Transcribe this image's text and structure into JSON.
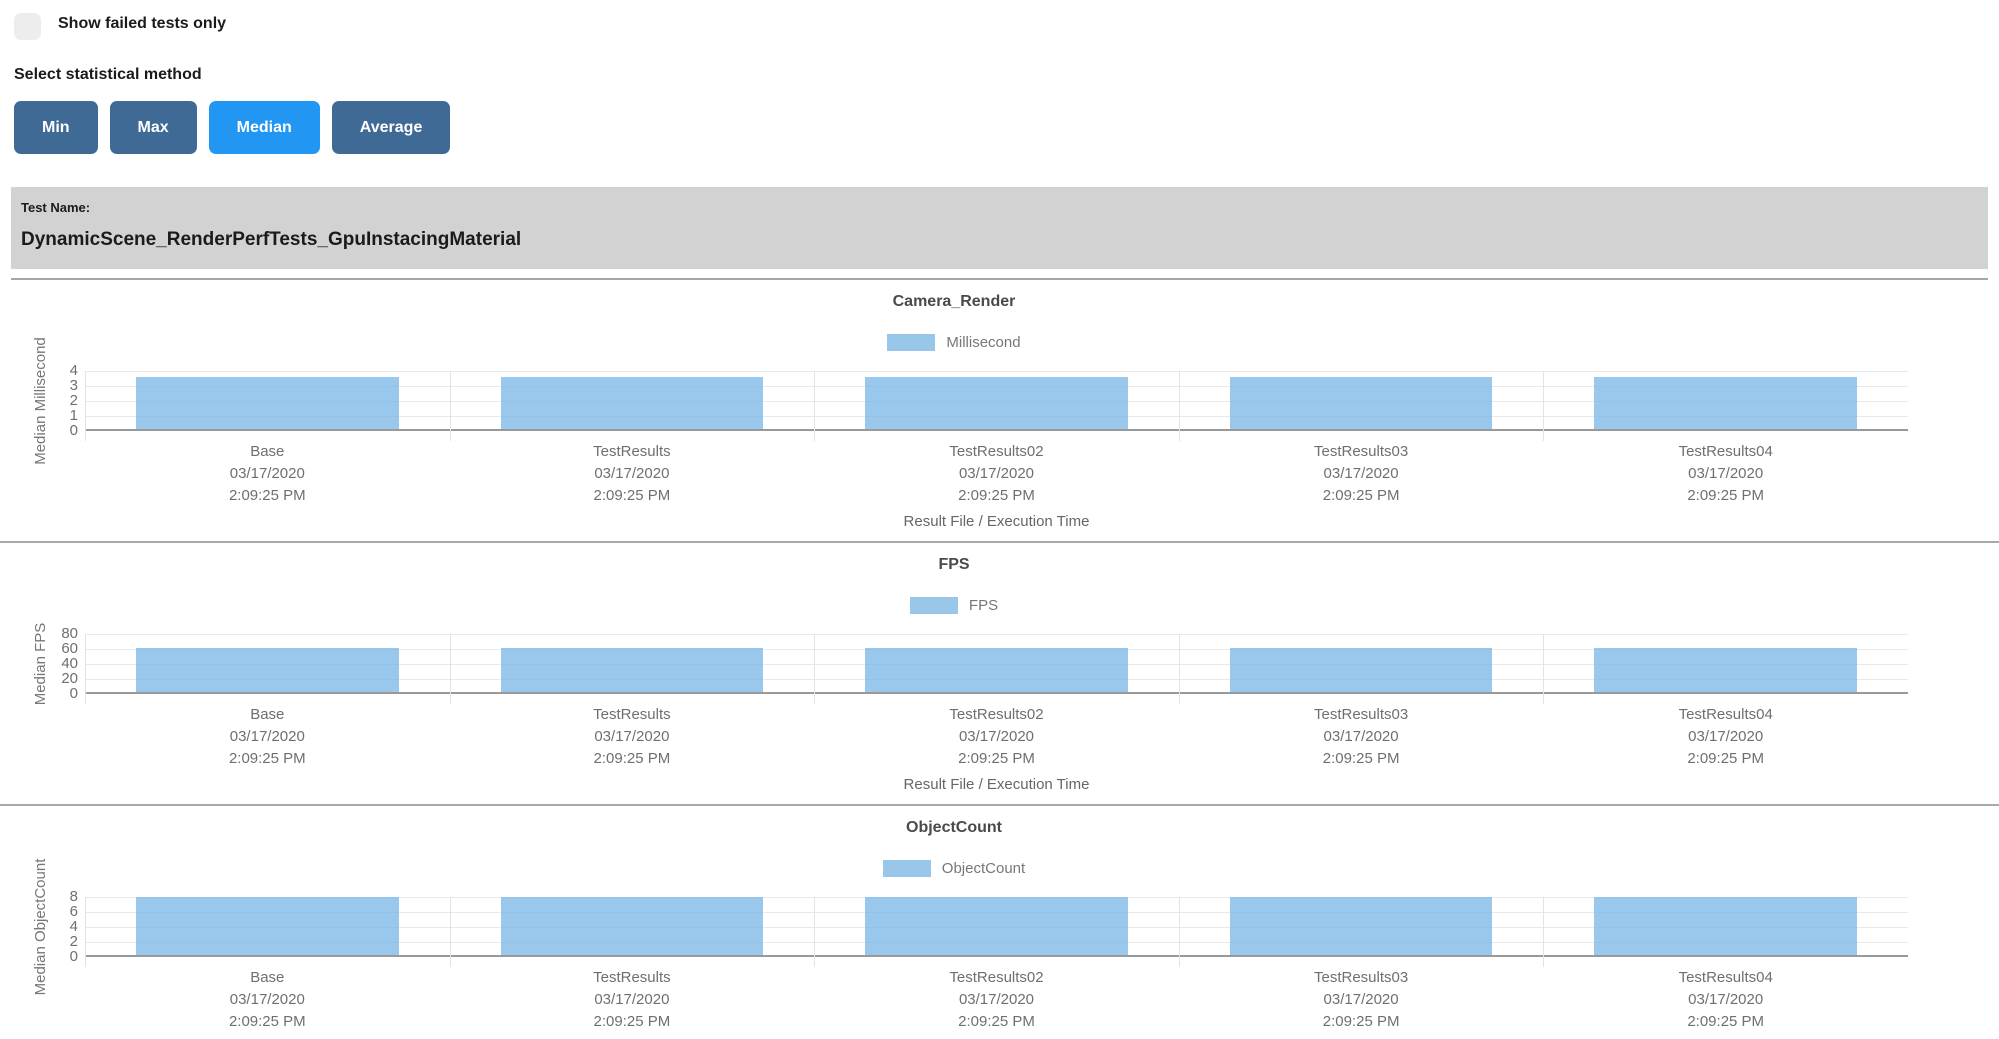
{
  "controls": {
    "show_failed_label": "Show failed tests only",
    "stat_method_label": "Select statistical method",
    "buttons": [
      {
        "label": "Min",
        "active": false
      },
      {
        "label": "Max",
        "active": false
      },
      {
        "label": "Median",
        "active": true
      },
      {
        "label": "Average",
        "active": false
      }
    ]
  },
  "test": {
    "header_label": "Test Name:",
    "name": "DynamicScene_RenderPerfTests_GpuInstacingMaterial"
  },
  "colors": {
    "bar_fill": "#99c7ea",
    "button_default": "#3f6a96",
    "button_active": "#2196f3",
    "header_bg": "#d2d2d2"
  },
  "chart_data": [
    {
      "type": "bar",
      "title": "Camera_Render",
      "legend": "Millisecond",
      "legend_position": "top",
      "ylabel": "Median Millisecond",
      "xlabel": "Result File / Execution Time",
      "ylim": [
        0,
        4
      ],
      "yticks": [
        0,
        1,
        2,
        3,
        4
      ],
      "grid": true,
      "categories": [
        [
          "Base",
          "03/17/2020",
          "2:09:25 PM"
        ],
        [
          "TestResults",
          "03/17/2020",
          "2:09:25 PM"
        ],
        [
          "TestResults02",
          "03/17/2020",
          "2:09:25 PM"
        ],
        [
          "TestResults03",
          "03/17/2020",
          "2:09:25 PM"
        ],
        [
          "TestResults04",
          "03/17/2020",
          "2:09:25 PM"
        ]
      ],
      "values": [
        3.5,
        3.5,
        3.5,
        3.5,
        3.5
      ]
    },
    {
      "type": "bar",
      "title": "FPS",
      "legend": "FPS",
      "legend_position": "top",
      "ylabel": "Median FPS",
      "xlabel": "Result File / Execution Time",
      "ylim": [
        0,
        80
      ],
      "yticks": [
        0,
        20,
        40,
        60,
        80
      ],
      "grid": true,
      "categories": [
        [
          "Base",
          "03/17/2020",
          "2:09:25 PM"
        ],
        [
          "TestResults",
          "03/17/2020",
          "2:09:25 PM"
        ],
        [
          "TestResults02",
          "03/17/2020",
          "2:09:25 PM"
        ],
        [
          "TestResults03",
          "03/17/2020",
          "2:09:25 PM"
        ],
        [
          "TestResults04",
          "03/17/2020",
          "2:09:25 PM"
        ]
      ],
      "values": [
        59,
        59,
        59,
        59,
        59
      ]
    },
    {
      "type": "bar",
      "title": "ObjectCount",
      "legend": "ObjectCount",
      "legend_position": "top",
      "ylabel": "Median ObjectCount",
      "xlabel": "",
      "ylim": [
        0,
        8
      ],
      "yticks": [
        0,
        2,
        4,
        6,
        8
      ],
      "grid": true,
      "categories": [
        [
          "Base",
          "03/17/2020",
          "2:09:25 PM"
        ],
        [
          "TestResults",
          "03/17/2020",
          "2:09:25 PM"
        ],
        [
          "TestResults02",
          "03/17/2020",
          "2:09:25 PM"
        ],
        [
          "TestResults03",
          "03/17/2020",
          "2:09:25 PM"
        ],
        [
          "TestResults04",
          "03/17/2020",
          "2:09:25 PM"
        ]
      ],
      "values": [
        7.7,
        7.7,
        7.7,
        7.7,
        7.7
      ]
    }
  ]
}
